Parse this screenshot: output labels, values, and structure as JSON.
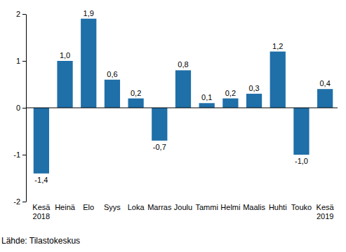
{
  "chart_data": {
    "type": "bar",
    "categories": [
      "Kesä\n2018",
      "Heinä",
      "Elo",
      "Syys",
      "Loka",
      "Marras",
      "Joulu",
      "Tammi",
      "Helmi",
      "Maalis",
      "Huhti",
      "Touko",
      "Kesä\n2019"
    ],
    "values": [
      -1.4,
      1.0,
      1.9,
      0.6,
      0.2,
      -0.7,
      0.8,
      0.1,
      0.2,
      0.3,
      1.2,
      -1.0,
      0.4
    ],
    "value_labels": [
      "-1,4",
      "1,0",
      "1,9",
      "0,6",
      "0,2",
      "-0,7",
      "0,8",
      "0,1",
      "0,2",
      "0,3",
      "1,2",
      "-1,0",
      "0,4"
    ],
    "color": "#1f6fa8",
    "ylim": [
      -2,
      2
    ],
    "yticks": [
      -2,
      -1,
      0,
      1,
      2
    ],
    "grid": false,
    "data_labels": true,
    "source": "Lähde: Tilastokeskus"
  }
}
